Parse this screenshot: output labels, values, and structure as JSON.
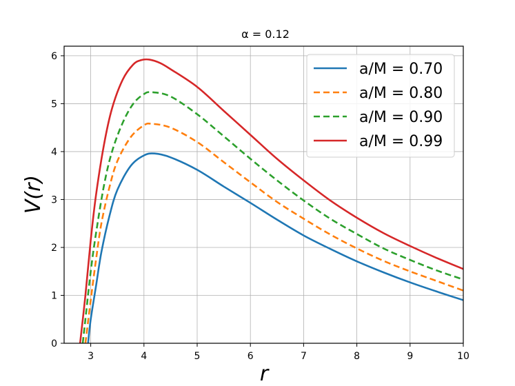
{
  "chart_data": {
    "type": "line",
    "title": "α = 0.12",
    "xlabel": "r",
    "ylabel": "V(r)",
    "xlim": [
      2.5,
      10
    ],
    "ylim": [
      0,
      6.2
    ],
    "xticks": [
      3,
      4,
      5,
      6,
      7,
      8,
      9,
      10
    ],
    "yticks": [
      0,
      1,
      2,
      3,
      4,
      5,
      6
    ],
    "grid": true,
    "legend_position": "top-right",
    "series": [
      {
        "name": "a/M = 0.70",
        "color": "#1f77b4",
        "style": "solid",
        "x": [
          2.95,
          3.0,
          3.1,
          3.2,
          3.35,
          3.5,
          3.75,
          4.0,
          4.2,
          4.5,
          5.0,
          5.5,
          6.0,
          6.5,
          7.0,
          7.5,
          8.0,
          8.5,
          9.0,
          9.5,
          10.0
        ],
        "y": [
          0.0,
          0.5,
          1.2,
          1.9,
          2.65,
          3.2,
          3.7,
          3.92,
          3.96,
          3.88,
          3.62,
          3.27,
          2.93,
          2.58,
          2.25,
          1.97,
          1.71,
          1.48,
          1.27,
          1.08,
          0.9
        ]
      },
      {
        "name": "a/M = 0.80",
        "color": "#ff7f0e",
        "style": "dashed",
        "x": [
          2.9,
          3.0,
          3.1,
          3.2,
          3.35,
          3.5,
          3.75,
          4.0,
          4.15,
          4.5,
          5.0,
          5.5,
          6.0,
          6.5,
          7.0,
          7.5,
          8.0,
          8.5,
          9.0,
          9.5,
          10.0
        ],
        "y": [
          0.0,
          0.9,
          1.75,
          2.5,
          3.25,
          3.8,
          4.3,
          4.55,
          4.58,
          4.5,
          4.2,
          3.78,
          3.36,
          2.95,
          2.6,
          2.27,
          1.98,
          1.72,
          1.5,
          1.3,
          1.1
        ]
      },
      {
        "name": "a/M = 0.90",
        "color": "#2ca02c",
        "style": "dashed",
        "x": [
          2.85,
          2.9,
          3.0,
          3.1,
          3.25,
          3.4,
          3.6,
          3.8,
          4.0,
          4.15,
          4.5,
          5.0,
          5.5,
          6.0,
          6.5,
          7.0,
          7.5,
          8.0,
          8.5,
          9.0,
          9.5,
          10.0
        ],
        "y": [
          0.0,
          0.5,
          1.5,
          2.3,
          3.3,
          4.0,
          4.6,
          5.0,
          5.2,
          5.24,
          5.15,
          4.78,
          4.32,
          3.85,
          3.4,
          2.98,
          2.6,
          2.28,
          1.98,
          1.74,
          1.52,
          1.33
        ]
      },
      {
        "name": "a/M = 0.99",
        "color": "#d62728",
        "style": "solid",
        "x": [
          2.8,
          2.9,
          3.0,
          3.1,
          3.25,
          3.4,
          3.6,
          3.8,
          3.95,
          4.1,
          4.3,
          4.5,
          5.0,
          5.5,
          6.0,
          6.5,
          7.0,
          7.5,
          8.0,
          8.5,
          9.0,
          9.5,
          10.0
        ],
        "y": [
          0.0,
          1.0,
          2.15,
          3.1,
          4.15,
          4.9,
          5.5,
          5.82,
          5.91,
          5.92,
          5.85,
          5.72,
          5.35,
          4.85,
          4.35,
          3.85,
          3.4,
          2.98,
          2.62,
          2.3,
          2.03,
          1.78,
          1.55
        ]
      }
    ]
  }
}
